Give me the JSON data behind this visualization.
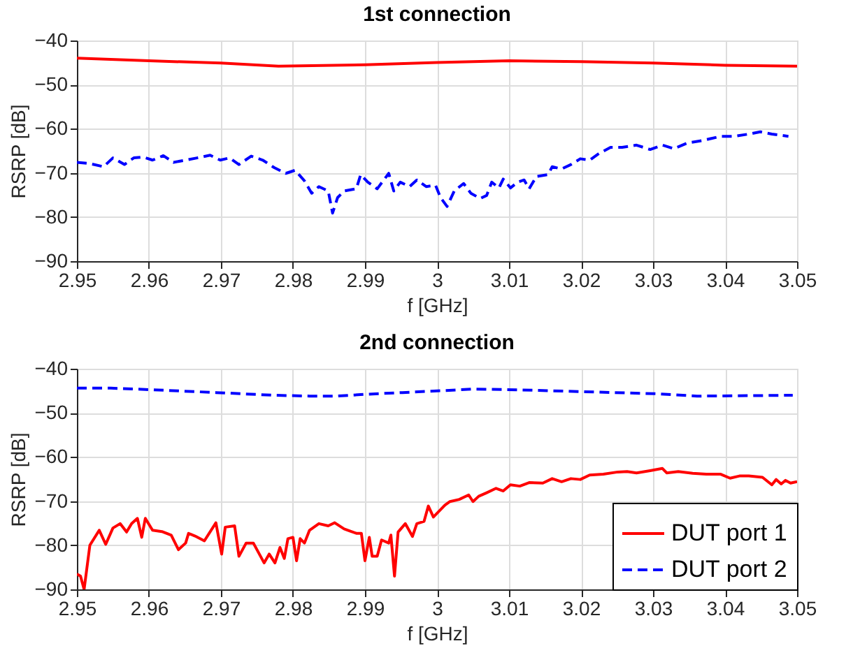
{
  "chart_data": [
    {
      "type": "line",
      "title": "1st connection",
      "xlabel": "f [GHz]",
      "ylabel": "RSRP [dB]",
      "xlim": [
        2.95,
        3.05
      ],
      "xticks": [
        2.95,
        2.96,
        2.97,
        2.98,
        2.99,
        3,
        3.01,
        3.02,
        3.03,
        3.04,
        3.05
      ],
      "ylim": [
        -90,
        -40
      ],
      "yticks": [
        -90,
        -80,
        -70,
        -60,
        -50,
        -40
      ],
      "grid": true,
      "series": [
        {
          "color": "#ff0000",
          "line_style": "solid",
          "x": [
            2.95,
            2.96,
            2.97,
            2.978,
            2.99,
            3.0,
            3.01,
            3.02,
            3.03,
            3.04,
            3.05
          ],
          "values": [
            -44,
            -44.6,
            -45.1,
            -45.8,
            -45.5,
            -45,
            -44.6,
            -44.8,
            -45.1,
            -45.6,
            -45.8
          ]
        },
        {
          "color": "#0000ff",
          "line_style": "dashed",
          "x": [
            2.95,
            2.9518,
            2.9537,
            2.955,
            2.9566,
            2.9579,
            2.9592,
            2.9605,
            2.962,
            2.9634,
            2.9651,
            2.9667,
            2.9685,
            2.9699,
            2.9712,
            2.9725,
            2.9742,
            2.9758,
            2.9774,
            2.979,
            2.9803,
            2.9816,
            2.9826,
            2.9836,
            2.9849,
            2.9855,
            2.9862,
            2.9871,
            2.9888,
            2.9894,
            2.9904,
            2.9917,
            2.9933,
            2.994,
            2.9949,
            2.9962,
            2.9972,
            2.9985,
            2.9998,
            3.0005,
            3.0014,
            3.0024,
            3.0037,
            3.0047,
            3.006,
            3.0069,
            3.0076,
            3.0086,
            3.0092,
            3.0102,
            3.0112,
            3.0121,
            3.0128,
            3.0138,
            3.0154,
            3.016,
            3.0173,
            3.0186,
            3.0199,
            3.0212,
            3.0225,
            3.0241,
            3.0257,
            3.0277,
            3.0296,
            3.0313,
            3.0329,
            3.0348,
            3.0368,
            3.0394,
            3.0413,
            3.0433,
            3.0449,
            3.0465,
            3.0488
          ],
          "values": [
            -67.6,
            -67.9,
            -68.6,
            -66.6,
            -68.1,
            -66.6,
            -66.4,
            -67.1,
            -66.1,
            -67.6,
            -67.1,
            -66.6,
            -66,
            -67.1,
            -66.6,
            -68.1,
            -66.2,
            -67.1,
            -68.8,
            -70.1,
            -69.4,
            -71.8,
            -74.6,
            -73.1,
            -74.1,
            -79.1,
            -75.6,
            -74.1,
            -73.6,
            -70.4,
            -72.1,
            -73.6,
            -70.1,
            -74.1,
            -72.1,
            -73.1,
            -71.6,
            -73.1,
            -72.8,
            -75.6,
            -77.6,
            -74.1,
            -72.4,
            -74.6,
            -75.8,
            -75.1,
            -72.1,
            -73.4,
            -71.4,
            -73.4,
            -72.1,
            -71.6,
            -73.6,
            -70.8,
            -70.4,
            -68.6,
            -69.1,
            -68.1,
            -66.8,
            -67.1,
            -65.6,
            -64.2,
            -64.2,
            -63.7,
            -64.7,
            -63.7,
            -64.5,
            -63.2,
            -62.7,
            -61.7,
            -61.7,
            -61.2,
            -60.7,
            -61.2,
            -61.7
          ]
        }
      ]
    },
    {
      "type": "line",
      "title": "2nd connection",
      "xlabel": "f [GHz]",
      "ylabel": "RSRP [dB]",
      "xlim": [
        2.95,
        3.05
      ],
      "xticks": [
        2.95,
        2.96,
        2.97,
        2.98,
        2.99,
        3,
        3.01,
        3.02,
        3.03,
        3.04,
        3.05
      ],
      "ylim": [
        -90,
        -40
      ],
      "yticks": [
        -90,
        -80,
        -70,
        -60,
        -50,
        -40
      ],
      "grid": true,
      "legend": "bottom right",
      "series": [
        {
          "name": "DUT port 1",
          "color": "#ff0000",
          "line_style": "solid",
          "x": [
            2.95,
            2.9505,
            2.951,
            2.9518,
            2.9531,
            2.954,
            2.955,
            2.956,
            2.9569,
            2.9576,
            2.9584,
            2.959,
            2.9595,
            2.9605,
            2.9618,
            2.9631,
            2.9641,
            2.9651,
            2.9655,
            2.9664,
            2.9677,
            2.9693,
            2.9701,
            2.9706,
            2.9719,
            2.9725,
            2.9735,
            2.9745,
            2.976,
            2.9767,
            2.9775,
            2.9782,
            2.9788,
            2.9793,
            2.98,
            2.9805,
            2.981,
            2.9816,
            2.9823,
            2.9836,
            2.9849,
            2.9858,
            2.9871,
            2.9888,
            2.9895,
            2.99,
            2.9906,
            2.991,
            2.9917,
            2.9923,
            2.9933,
            2.9936,
            2.9941,
            2.9946,
            2.9956,
            2.9966,
            2.9972,
            2.9982,
            2.9988,
            2.9995,
            3.0011,
            3.0018,
            3.0031,
            3.0044,
            3.005,
            3.0058,
            3.0069,
            3.0082,
            3.0092,
            3.0102,
            3.0115,
            3.0128,
            3.0147,
            3.016,
            3.0173,
            3.0186,
            3.0199,
            3.0212,
            3.0231,
            3.0251,
            3.0264,
            3.0277,
            3.0296,
            3.0313,
            3.0319,
            3.0335,
            3.0355,
            3.0374,
            3.0394,
            3.0407,
            3.042,
            3.0433,
            3.0452,
            3.0465,
            3.0471,
            3.0478,
            3.0484,
            3.0491,
            3.05
          ],
          "values": [
            -86.5,
            -87,
            -90,
            -80,
            -76.6,
            -79.8,
            -76.1,
            -75.1,
            -77,
            -75.1,
            -73.9,
            -78.2,
            -73.9,
            -76.6,
            -76.9,
            -77.7,
            -81,
            -79.5,
            -77.3,
            -77.9,
            -79,
            -74.9,
            -82,
            -75.9,
            -75.6,
            -82.5,
            -79.5,
            -79.5,
            -84,
            -82,
            -84,
            -80.5,
            -83,
            -78.5,
            -78.2,
            -83.5,
            -78.5,
            -79.5,
            -76.6,
            -75.1,
            -75.6,
            -74.9,
            -76.3,
            -77.3,
            -77.3,
            -83.5,
            -78.2,
            -82.5,
            -82.5,
            -78.8,
            -79.5,
            -77.7,
            -87,
            -77,
            -75.1,
            -78,
            -75.1,
            -74.6,
            -71.1,
            -73.6,
            -70.9,
            -70.1,
            -69.6,
            -68.6,
            -70.1,
            -68.9,
            -68.1,
            -67.1,
            -67.7,
            -66.3,
            -66.6,
            -65.8,
            -65.9,
            -64.9,
            -65.6,
            -64.9,
            -65.1,
            -64.1,
            -63.9,
            -63.4,
            -63.3,
            -63.6,
            -63.1,
            -62.6,
            -63.6,
            -63.3,
            -63.7,
            -63.9,
            -63.9,
            -64.8,
            -64.3,
            -64.3,
            -64.6,
            -66.3,
            -65.1,
            -66.1,
            -65.3,
            -65.9,
            -65.6
          ]
        },
        {
          "name": "DUT port 2",
          "color": "#0000ff",
          "line_style": "dashed",
          "x": [
            2.95,
            2.9547,
            2.9595,
            2.9693,
            2.9771,
            2.9823,
            2.9861,
            2.99,
            2.9952,
            3.0017,
            3.005,
            3.0115,
            3.018,
            3.0244,
            3.0309,
            3.0361,
            3.0439,
            3.0494
          ],
          "values": [
            -44.4,
            -44.4,
            -44.7,
            -45.4,
            -46,
            -46.2,
            -46.2,
            -45.8,
            -45.4,
            -44.9,
            -44.6,
            -44.8,
            -45.1,
            -45.4,
            -45.7,
            -46.2,
            -46.1,
            -46
          ]
        }
      ]
    }
  ]
}
